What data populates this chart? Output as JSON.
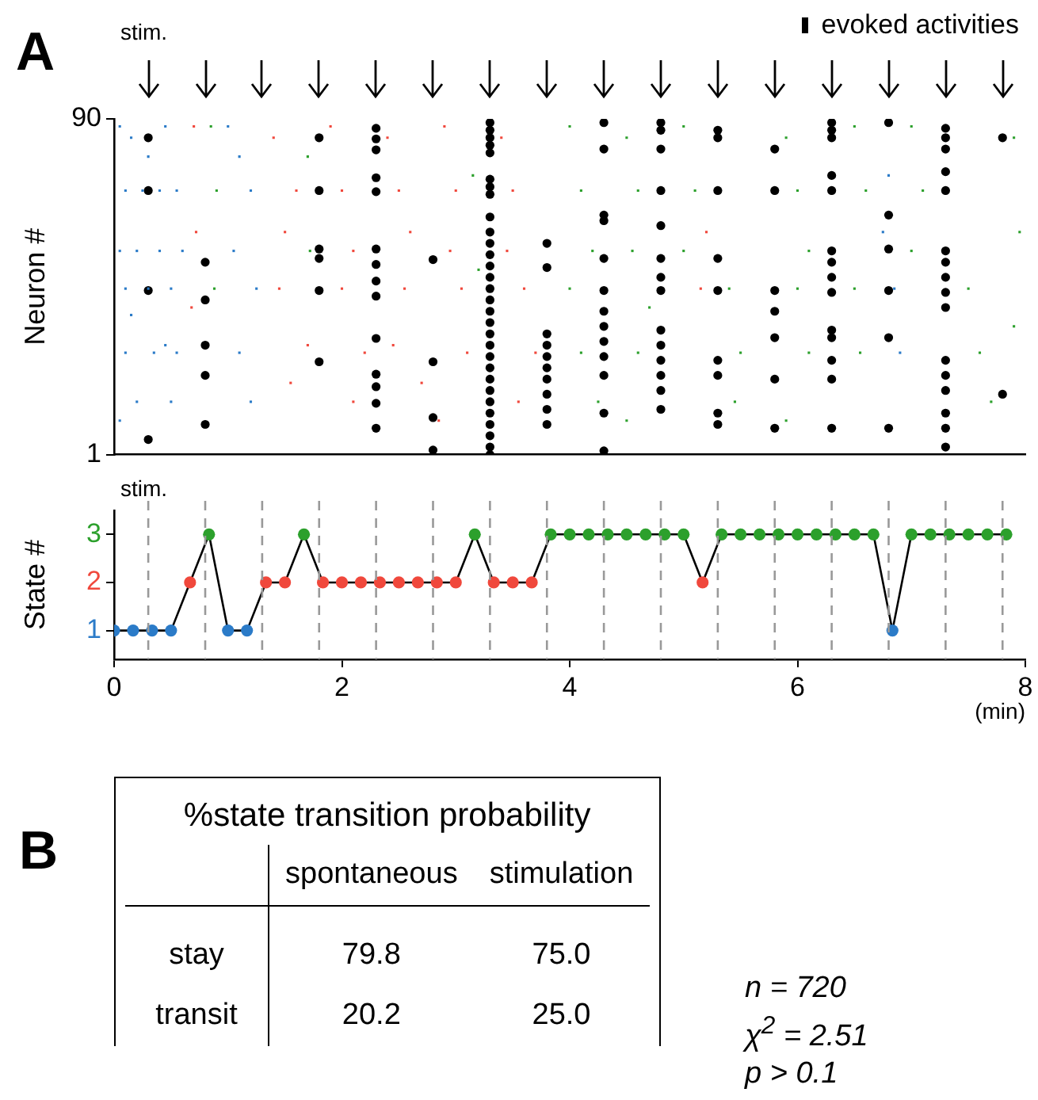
{
  "chart_data": [
    {
      "type": "scatter",
      "ylabel": "Neuron #",
      "xlim": [
        0,
        8
      ],
      "ylim": [
        1,
        90
      ],
      "yticks": [
        1,
        90
      ],
      "tick_labels": "y",
      "grid": false,
      "legend": "top right",
      "annotations": [
        "A",
        "stim."
      ],
      "series": [
        {
          "color": "#2b7bc8",
          "marker": "square",
          "x": [
            0.05,
            0.15,
            0.3,
            0.45,
            0.1,
            0.25,
            0.4,
            0.55,
            0.05,
            0.2,
            0.4,
            0.6,
            0.1,
            0.3,
            0.5,
            0.15,
            0.45,
            0.1,
            0.35,
            0.55,
            0.2,
            0.5,
            0.05,
            1.0,
            1.1,
            1.2,
            1.05,
            1.25,
            1.1,
            1.2,
            6.75,
            6.85,
            6.9,
            6.8
          ],
          "values": [
            88,
            85,
            80,
            88,
            71,
            71,
            71,
            71,
            55,
            55,
            55,
            55,
            45,
            45,
            45,
            38,
            30,
            28,
            28,
            28,
            15,
            15,
            10,
            88,
            80,
            71,
            55,
            45,
            28,
            15,
            60,
            45,
            28,
            75
          ]
        },
        {
          "color": "#f0483c",
          "marker": "square",
          "x": [
            0.7,
            0.72,
            0.68,
            1.4,
            1.6,
            1.5,
            1.45,
            1.7,
            1.55,
            1.9,
            2.0,
            2.1,
            2.0,
            2.2,
            2.1,
            2.4,
            2.5,
            2.6,
            2.55,
            2.45,
            2.7,
            2.9,
            3.0,
            2.95,
            3.05,
            3.1,
            2.85,
            3.4,
            3.5,
            3.45,
            3.6,
            3.7,
            3.55,
            5.15,
            5.2
          ],
          "values": [
            88,
            60,
            40,
            85,
            71,
            60,
            45,
            30,
            20,
            88,
            71,
            55,
            45,
            28,
            15,
            85,
            71,
            60,
            45,
            30,
            20,
            88,
            71,
            55,
            45,
            28,
            10,
            85,
            71,
            55,
            45,
            28,
            15,
            45,
            60
          ]
        },
        {
          "color": "#2ca02c",
          "marker": "square",
          "x": [
            0.85,
            0.9,
            0.88,
            1.7,
            1.72,
            3.15,
            3.2,
            4.0,
            4.1,
            4.2,
            4.0,
            4.1,
            4.25,
            4.5,
            4.6,
            4.55,
            4.7,
            4.6,
            4.5,
            5.0,
            5.1,
            5.0,
            5.4,
            5.5,
            5.45,
            5.9,
            6.0,
            6.1,
            6.0,
            6.1,
            5.9,
            6.5,
            6.6,
            6.5,
            6.55,
            7.0,
            7.1,
            7.0,
            7.5,
            7.6,
            7.7,
            7.9,
            7.95,
            7.9
          ],
          "values": [
            88,
            71,
            45,
            80,
            55,
            75,
            50,
            88,
            71,
            55,
            45,
            28,
            15,
            85,
            71,
            55,
            40,
            28,
            10,
            88,
            71,
            55,
            45,
            28,
            15,
            85,
            71,
            55,
            45,
            28,
            10,
            88,
            71,
            45,
            28,
            88,
            71,
            55,
            45,
            28,
            15,
            85,
            60,
            35
          ]
        },
        {
          "name": "evoked activities",
          "color": "#000000",
          "marker": "circle",
          "x": [
            0.3,
            0.3,
            0.3,
            0.3,
            0.8,
            0.8,
            0.8,
            0.8,
            0.8,
            1.8,
            1.8,
            1.8,
            1.8,
            1.8,
            1.8,
            2.3,
            2.3,
            2.3,
            2.3,
            2.3,
            2.3,
            2.3,
            2.3,
            2.3,
            2.3,
            2.3,
            2.3,
            2.3,
            2.3,
            2.8,
            2.8,
            2.8,
            2.8,
            3.3,
            3.3,
            3.3,
            3.3,
            3.3,
            3.3,
            3.3,
            3.3,
            3.3,
            3.3,
            3.3,
            3.3,
            3.3,
            3.3,
            3.3,
            3.3,
            3.3,
            3.3,
            3.3,
            3.3,
            3.3,
            3.3,
            3.3,
            3.3,
            3.3,
            3.3,
            3.3,
            3.3,
            3.3,
            3.3,
            3.8,
            3.8,
            3.8,
            3.8,
            3.8,
            3.8,
            3.8,
            3.8,
            3.8,
            3.8,
            4.3,
            4.3,
            4.3,
            4.3,
            4.3,
            4.3,
            4.3,
            4.3,
            4.3,
            4.3,
            4.3,
            4.3,
            4.3,
            4.8,
            4.8,
            4.8,
            4.8,
            4.8,
            4.8,
            4.8,
            4.8,
            4.8,
            4.8,
            4.8,
            4.8,
            4.8,
            4.8,
            5.3,
            5.3,
            5.3,
            5.3,
            5.3,
            5.3,
            5.3,
            5.3,
            5.3,
            5.8,
            5.8,
            5.8,
            5.8,
            5.8,
            5.8,
            5.8,
            6.3,
            6.3,
            6.3,
            6.3,
            6.3,
            6.3,
            6.3,
            6.3,
            6.3,
            6.3,
            6.3,
            6.3,
            6.3,
            6.3,
            6.8,
            6.8,
            6.8,
            6.8,
            6.8,
            6.8,
            7.3,
            7.3,
            7.3,
            7.3,
            7.3,
            7.3,
            7.3,
            7.3,
            7.3,
            7.3,
            7.3,
            7.3,
            7.3,
            7.3,
            7.3,
            7.3,
            7.8,
            7.8
          ],
          "values": [
            85,
            71,
            44.5,
            5,
            52,
            42,
            30,
            22,
            9,
            85,
            71,
            55.5,
            53,
            44.5,
            25.6,
            87.5,
            84.7,
            81.8,
            74.4,
            70.7,
            55.5,
            51.4,
            47,
            43,
            31.8,
            22.3,
            19,
            14.6,
            8,
            52.7,
            25.6,
            10.8,
            2.2,
            89,
            87,
            85,
            83,
            81,
            74,
            72,
            70,
            64,
            60,
            57,
            54,
            51,
            48,
            45,
            42,
            39,
            36,
            33,
            30,
            27,
            24,
            21,
            18,
            15,
            12,
            9,
            6,
            3,
            1,
            57,
            50.6,
            33,
            30,
            27,
            24,
            21,
            17,
            13,
            9,
            89,
            82,
            64.5,
            63,
            53,
            44.5,
            39,
            35,
            31,
            27,
            22,
            12,
            2,
            89,
            87,
            82,
            71,
            61.7,
            53,
            48,
            44.5,
            34,
            30,
            26,
            22,
            18,
            13,
            87,
            85,
            71,
            53,
            44.5,
            26,
            22,
            12,
            9,
            82,
            71,
            44.5,
            39,
            32,
            21,
            8,
            89,
            87,
            85,
            75,
            71,
            55,
            52,
            48,
            44,
            34,
            32,
            26,
            21,
            8,
            89,
            64.5,
            55.5,
            44.5,
            32,
            8,
            87.5,
            85,
            82,
            76,
            71,
            55,
            52,
            48,
            44,
            40,
            26,
            22,
            18,
            12,
            8,
            3,
            85,
            17
          ]
        }
      ]
    },
    {
      "type": "line",
      "ylabel": "State #",
      "xlabel": "(min)",
      "xlim": [
        0,
        8
      ],
      "xticks": [
        0,
        2,
        4,
        6,
        8
      ],
      "ylim": [
        0.4,
        3.5
      ],
      "yticks": [
        1,
        2,
        3
      ],
      "grid": false,
      "legend": false,
      "marker": "circle",
      "annotations": [
        "stim."
      ],
      "ref_lines": [
        {
          "axis": "x",
          "value": 0.3,
          "color": "#999999",
          "line_style": "dashed"
        },
        {
          "axis": "x",
          "value": 0.8,
          "color": "#999999",
          "line_style": "dashed"
        },
        {
          "axis": "x",
          "value": 1.3,
          "color": "#999999",
          "line_style": "dashed"
        },
        {
          "axis": "x",
          "value": 1.8,
          "color": "#999999",
          "line_style": "dashed"
        },
        {
          "axis": "x",
          "value": 2.3,
          "color": "#999999",
          "line_style": "dashed"
        },
        {
          "axis": "x",
          "value": 2.8,
          "color": "#999999",
          "line_style": "dashed"
        },
        {
          "axis": "x",
          "value": 3.3,
          "color": "#999999",
          "line_style": "dashed"
        },
        {
          "axis": "x",
          "value": 3.8,
          "color": "#999999",
          "line_style": "dashed"
        },
        {
          "axis": "x",
          "value": 4.3,
          "color": "#999999",
          "line_style": "dashed"
        },
        {
          "axis": "x",
          "value": 4.8,
          "color": "#999999",
          "line_style": "dashed"
        },
        {
          "axis": "x",
          "value": 5.3,
          "color": "#999999",
          "line_style": "dashed"
        },
        {
          "axis": "x",
          "value": 5.8,
          "color": "#999999",
          "line_style": "dashed"
        },
        {
          "axis": "x",
          "value": 6.3,
          "color": "#999999",
          "line_style": "dashed"
        },
        {
          "axis": "x",
          "value": 6.8,
          "color": "#999999",
          "line_style": "dashed"
        },
        {
          "axis": "x",
          "value": 7.3,
          "color": "#999999",
          "line_style": "dashed"
        },
        {
          "axis": "x",
          "value": 7.8,
          "color": "#999999",
          "line_style": "dashed"
        }
      ],
      "x": [
        0,
        0.1667,
        0.3333,
        0.5,
        0.6667,
        0.8333,
        1,
        1.1667,
        1.3333,
        1.5,
        1.6667,
        1.8333,
        2,
        2.1667,
        2.3333,
        2.5,
        2.6667,
        2.8333,
        3,
        3.1667,
        3.3333,
        3.5,
        3.6667,
        3.8333,
        4,
        4.1667,
        4.3333,
        4.5,
        4.6667,
        4.8333,
        5,
        5.1667,
        5.3333,
        5.5,
        5.6667,
        5.8333,
        6,
        6.1667,
        6.3333,
        6.5,
        6.6667,
        6.8333,
        7,
        7.1667,
        7.3333,
        7.5,
        7.6667,
        7.8333
      ],
      "series": [
        {
          "color": "#000000",
          "values": [
            1,
            1,
            1,
            1,
            2,
            3,
            1,
            1,
            2,
            2,
            3,
            2,
            2,
            2,
            2,
            2,
            2,
            2,
            2,
            3,
            2,
            2,
            2,
            3,
            3,
            3,
            3,
            3,
            3,
            3,
            3,
            2,
            3,
            3,
            3,
            3,
            3,
            3,
            3,
            3,
            3,
            1,
            3,
            3,
            3,
            3,
            3,
            3
          ],
          "colors": [
            "#2b7bc8",
            "#2b7bc8",
            "#2b7bc8",
            "#2b7bc8",
            "#f0483c",
            "#2ca02c",
            "#2b7bc8",
            "#2b7bc8",
            "#f0483c",
            "#f0483c",
            "#2ca02c",
            "#f0483c",
            "#f0483c",
            "#f0483c",
            "#f0483c",
            "#f0483c",
            "#f0483c",
            "#f0483c",
            "#f0483c",
            "#2ca02c",
            "#f0483c",
            "#f0483c",
            "#f0483c",
            "#2ca02c",
            "#2ca02c",
            "#2ca02c",
            "#2ca02c",
            "#2ca02c",
            "#2ca02c",
            "#2ca02c",
            "#2ca02c",
            "#f0483c",
            "#2ca02c",
            "#2ca02c",
            "#2ca02c",
            "#2ca02c",
            "#2ca02c",
            "#2ca02c",
            "#2ca02c",
            "#2ca02c",
            "#2ca02c",
            "#2b7bc8",
            "#2ca02c",
            "#2ca02c",
            "#2ca02c",
            "#2ca02c",
            "#2ca02c",
            "#2ca02c"
          ]
        }
      ]
    },
    {
      "type": "other",
      "title": "%state transition probability",
      "categories": [
        "stay",
        "transit"
      ],
      "annotations": [
        "B",
        "n = 720",
        "χ$^{2}$ = 2.51",
        "p > 0.1"
      ],
      "series": [
        {
          "name": "spontaneous",
          "values": [
            79.8,
            20.2
          ],
          "value_labels": [
            "79.8",
            "20.2"
          ]
        },
        {
          "name": "stimulation",
          "values": [
            75,
            25
          ],
          "value_labels": [
            "75.0",
            "25.0"
          ]
        }
      ]
    }
  ]
}
